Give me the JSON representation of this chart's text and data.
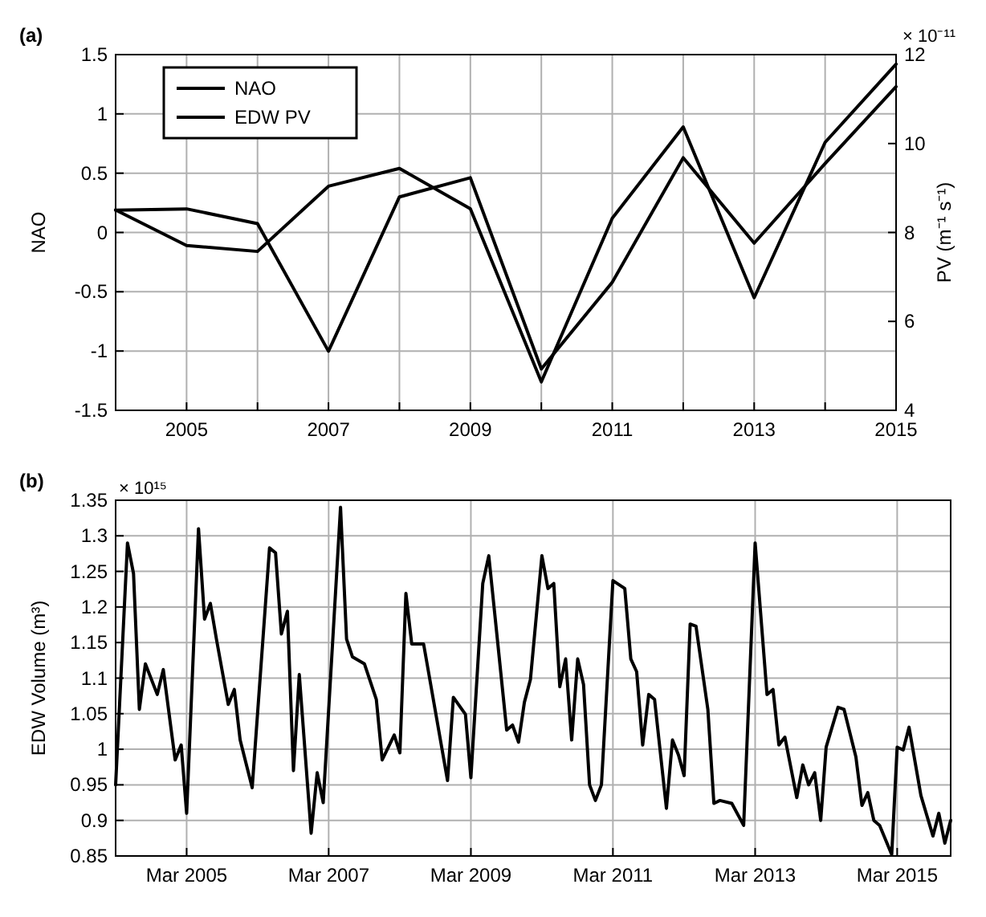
{
  "chart_data": [
    {
      "type": "line",
      "title": "(a)",
      "ylabel": "NAO",
      "y2label": "PV (m⁻¹ s⁻¹)",
      "annotations": [
        "× 10⁻¹¹"
      ],
      "x": [
        2004,
        2005,
        2006,
        2007,
        2008,
        2009,
        2010,
        2011,
        2012,
        2013,
        2014,
        2015
      ],
      "series": [
        {
          "name": "NAO",
          "color": "#000000",
          "values": [
            0.19,
            -0.11,
            -0.16,
            0.39,
            0.54,
            0.2,
            -1.26,
            0.12,
            0.89,
            -0.55,
            0.76,
            1.42
          ]
        },
        {
          "name": "EDW PV",
          "color": "#000000",
          "axis": "y2",
          "values": [
            8.5,
            8.53,
            8.2,
            5.33,
            8.8,
            9.23,
            4.93,
            6.88,
            9.68,
            7.76,
            9.55,
            11.28
          ]
        }
      ],
      "xlim": [
        2004,
        2015
      ],
      "xticks": [
        {
          "value": 2004,
          "label": null
        },
        2005,
        {
          "value": 2006,
          "label": null
        },
        2007,
        {
          "value": 2008,
          "label": null
        },
        2009,
        {
          "value": 2010,
          "label": null
        },
        2011,
        {
          "value": 2012,
          "label": null
        },
        2013,
        {
          "value": 2014,
          "label": null
        },
        2015
      ],
      "ylim": [
        -1.5,
        1.5
      ],
      "yticks": [
        -1.5,
        -1,
        -0.5,
        0,
        0.5,
        1,
        1.5
      ],
      "y2lim": [
        4,
        12
      ],
      "y2ticks": [
        4,
        6,
        8,
        10,
        12
      ],
      "grid": true,
      "legend": "top left",
      "line_style": "solid"
    },
    {
      "type": "line",
      "title": "(b)",
      "ylabel": "EDW Volume (m³)",
      "annotations": [
        "× 10¹⁵"
      ],
      "x": [
        "2004-03",
        "2004-05",
        "2004-06",
        "2004-07",
        "2004-08",
        "2004-10",
        "2004-11",
        "2005-01",
        "2005-02",
        "2005-03",
        "2005-05",
        "2005-06",
        "2005-07",
        "2005-08",
        "2005-10",
        "2005-11",
        "2005-12",
        "2006-02",
        "2006-05",
        "2006-06",
        "2006-07",
        "2006-08",
        "2006-09",
        "2006-10",
        "2006-12",
        "2007-01",
        "2007-02",
        "2007-05",
        "2007-06",
        "2007-07",
        "2007-09",
        "2007-11",
        "2007-12",
        "2008-02",
        "2008-03",
        "2008-04",
        "2008-05",
        "2008-07",
        "2008-11",
        "2008-12",
        "2009-02",
        "2009-03",
        "2009-05",
        "2009-06",
        "2009-09",
        "2009-10",
        "2009-11",
        "2009-12",
        "2010-01",
        "2010-03",
        "2010-04",
        "2010-05",
        "2010-06",
        "2010-07",
        "2010-08",
        "2010-09",
        "2010-10",
        "2010-11",
        "2010-12",
        "2011-01",
        "2011-03",
        "2011-05",
        "2011-06",
        "2011-07",
        "2011-08",
        "2011-09",
        "2011-10",
        "2011-12",
        "2012-01",
        "2012-02",
        "2012-03",
        "2012-04",
        "2012-05",
        "2012-07",
        "2012-08",
        "2012-09",
        "2012-11",
        "2013-01",
        "2013-03",
        "2013-05",
        "2013-06",
        "2013-07",
        "2013-08",
        "2013-10",
        "2013-11",
        "2013-12",
        "2014-01",
        "2014-02",
        "2014-03",
        "2014-05",
        "2014-06",
        "2014-08",
        "2014-09",
        "2014-10",
        "2014-11",
        "2014-12",
        "2015-02",
        "2015-03",
        "2015-04",
        "2015-05",
        "2015-07",
        "2015-09",
        "2015-10",
        "2015-11",
        "2015-12"
      ],
      "series": [
        {
          "color": "#000000",
          "values": [
            0.95,
            1.29,
            1.247,
            1.056,
            1.12,
            1.077,
            1.112,
            0.985,
            1.006,
            0.91,
            1.31,
            1.183,
            1.205,
            1.155,
            1.063,
            1.084,
            1.013,
            0.946,
            1.283,
            1.276,
            1.162,
            1.194,
            0.97,
            1.105,
            0.882,
            0.967,
            0.925,
            1.34,
            1.155,
            1.13,
            1.12,
            1.07,
            0.985,
            1.02,
            0.995,
            1.219,
            1.148,
            1.148,
            0.956,
            1.073,
            1.049,
            0.96,
            1.233,
            1.272,
            1.027,
            1.034,
            1.01,
            1.066,
            1.098,
            1.272,
            1.226,
            1.233,
            1.088,
            1.127,
            1.013,
            1.127,
            1.091,
            0.95,
            0.928,
            0.95,
            1.237,
            1.226,
            1.127,
            1.109,
            1.006,
            1.077,
            1.07,
            0.917,
            1.013,
            0.992,
            0.963,
            1.176,
            1.173,
            1.056,
            0.924,
            0.928,
            0.924,
            0.893,
            1.29,
            1.077,
            1.084,
            1.006,
            1.017,
            0.932,
            0.978,
            0.95,
            0.967,
            0.9,
            1.003,
            1.059,
            1.056,
            0.989,
            0.921,
            0.939,
            0.9,
            0.893,
            0.852,
            1.003,
            0.999,
            1.031,
            0.935,
            0.878,
            0.91,
            0.868,
            0.9
          ]
        }
      ],
      "xlim": [
        "2004-03",
        "2015-12"
      ],
      "xticks": [
        {
          "value": "2005-03",
          "label": "Mar 2005"
        },
        {
          "value": "2007-03",
          "label": "Mar 2007"
        },
        {
          "value": "2009-03",
          "label": "Mar 2009"
        },
        {
          "value": "2011-03",
          "label": "Mar 2011"
        },
        {
          "value": "2013-03",
          "label": "Mar 2013"
        },
        {
          "value": "2015-03",
          "label": "Mar 2015"
        }
      ],
      "ylim": [
        0.85,
        1.35
      ],
      "yticks": [
        0.85,
        0.9,
        0.95,
        1,
        1.05,
        1.1,
        1.15,
        1.2,
        1.25,
        1.3,
        1.35
      ],
      "grid": true,
      "line_style": "solid"
    }
  ]
}
